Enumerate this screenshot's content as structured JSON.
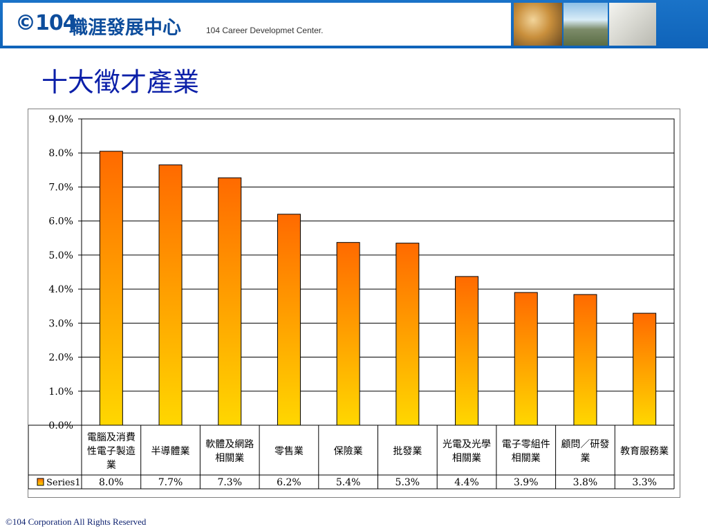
{
  "header": {
    "logo_mark": "©104",
    "logo_name": "職涯發展中心",
    "logo_subtitle": "104 Career Developmet Center."
  },
  "title": "十大徵才產業",
  "footer": "©104 Corporation All Rights Reserved",
  "colors": {
    "header_blue": "#0f63b9",
    "title_blue": "#0b1fa8",
    "bar_top": "#ff6a00",
    "bar_bottom": "#ffd700"
  },
  "chart_data": {
    "type": "bar",
    "ylim": [
      0,
      9
    ],
    "y_ticks": [
      "0.0%",
      "1.0%",
      "2.0%",
      "3.0%",
      "4.0%",
      "5.0%",
      "6.0%",
      "7.0%",
      "8.0%",
      "9.0%"
    ],
    "grid": true,
    "categories": [
      [
        "電腦及消費",
        "性電子製造",
        "業"
      ],
      [
        "半導體業"
      ],
      [
        "軟體及網路",
        "相關業"
      ],
      [
        "零售業"
      ],
      [
        "保險業"
      ],
      [
        "批發業"
      ],
      [
        "光電及光學",
        "相關業"
      ],
      [
        "電子零組件",
        "相關業"
      ],
      [
        "顧問／研發",
        "業"
      ],
      [
        "教育服務業"
      ]
    ],
    "series": [
      {
        "name": "Series1",
        "values": [
          8.05,
          7.65,
          7.27,
          6.2,
          5.37,
          5.35,
          4.37,
          3.9,
          3.84,
          3.29
        ],
        "labels": [
          "8.0%",
          "7.7%",
          "7.3%",
          "6.2%",
          "5.4%",
          "5.3%",
          "4.4%",
          "3.9%",
          "3.8%",
          "3.3%"
        ]
      }
    ],
    "legend_position": "data-table-left"
  }
}
